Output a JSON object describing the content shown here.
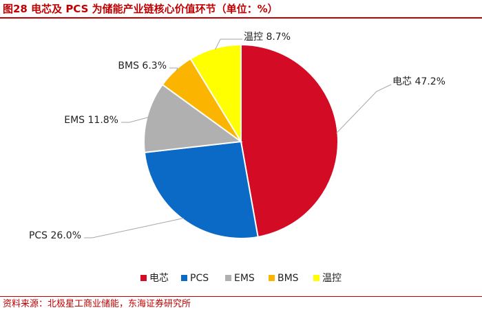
{
  "header": {
    "title": "图28 电芯及 PCS 为储能产业链核心价值环节（单位：%）"
  },
  "footer": {
    "source": "资料来源：北极星工商业储能，东海证券研究所"
  },
  "chart_data": {
    "type": "pie",
    "title": "图28 电芯及 PCS 为储能产业链核心价值环节（单位：%）",
    "unit": "%",
    "legend_position": "bottom",
    "slices": [
      {
        "label": "电芯",
        "value": 47.2,
        "display": "47.2%",
        "color": "#d40b24"
      },
      {
        "label": "PCS",
        "value": 26.0,
        "display": "26.0%",
        "color": "#0a6ac5"
      },
      {
        "label": "EMS",
        "value": 11.8,
        "display": "11.8%",
        "color": "#b0b0b0"
      },
      {
        "label": "BMS",
        "value": 6.3,
        "display": "6.3%",
        "color": "#fbb400"
      },
      {
        "label": "温控",
        "value": 8.7,
        "display": "8.7%",
        "color": "#ffff00"
      }
    ]
  }
}
